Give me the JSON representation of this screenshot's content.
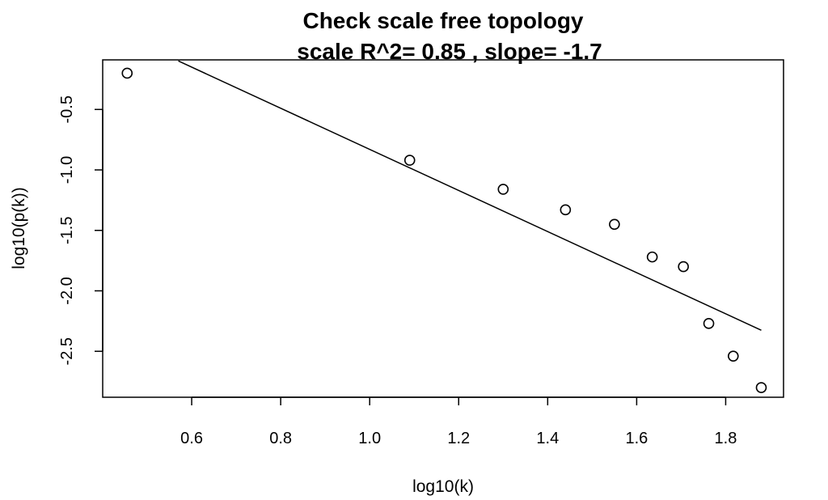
{
  "chart_data": {
    "type": "scatter",
    "title": "Check scale free topology",
    "subtitle": "scale R^2= 0.85 , slope= -1.7",
    "xlabel": "log10(k)",
    "ylabel": "log10(p(k))",
    "xlim": [
      0.4,
      1.93
    ],
    "ylim": [
      -2.88,
      -0.09
    ],
    "x_ticks": [
      0.6,
      0.8,
      1.0,
      1.2,
      1.4,
      1.6,
      1.8
    ],
    "x_tick_labels": [
      "0.6",
      "0.8",
      "1.0",
      "1.2",
      "1.4",
      "1.6",
      "1.8"
    ],
    "y_ticks": [
      -0.5,
      -1.0,
      -1.5,
      -2.0,
      -2.5
    ],
    "y_tick_labels": [
      "-0.5",
      "-1.0",
      "-1.5",
      "-2.0",
      "-2.5"
    ],
    "grid": false,
    "points": [
      {
        "x": 0.455,
        "y": -0.2
      },
      {
        "x": 1.09,
        "y": -0.92
      },
      {
        "x": 1.3,
        "y": -1.16
      },
      {
        "x": 1.44,
        "y": -1.33
      },
      {
        "x": 1.55,
        "y": -1.45
      },
      {
        "x": 1.635,
        "y": -1.72
      },
      {
        "x": 1.705,
        "y": -1.8
      },
      {
        "x": 1.762,
        "y": -2.27
      },
      {
        "x": 1.817,
        "y": -2.54
      },
      {
        "x": 1.88,
        "y": -2.8
      }
    ],
    "fit_line": {
      "slope": -1.7,
      "intercept": 0.87,
      "x_range": [
        0.57,
        1.88
      ]
    }
  }
}
